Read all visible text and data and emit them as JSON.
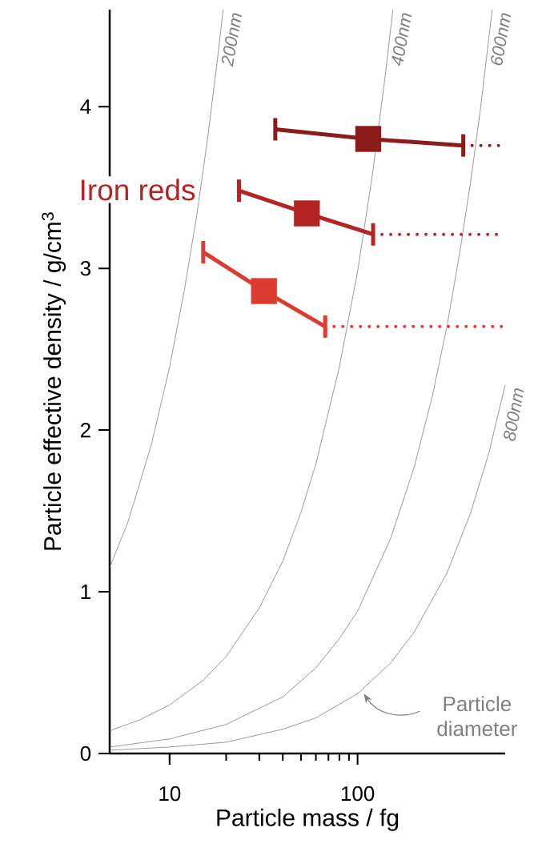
{
  "chart_data": {
    "type": "line",
    "xlabel": "Particle mass / fg",
    "ylabel": "Particle effective density / g/cm$^{3}$",
    "log": "x",
    "xlim": [
      4.8,
      610
    ],
    "xticks": [
      10,
      100
    ],
    "ylim": [
      0,
      4.6
    ],
    "yticks": [
      0,
      1,
      2,
      3,
      4
    ],
    "grid": false,
    "annotations": [
      "Iron reds",
      {
        "text": "Particle diameter",
        "x": 108,
        "y": 0.37
      }
    ],
    "series": [
      {
        "name": "200nm",
        "color": "#808080",
        "x": [
          4.8,
          6,
          8,
          10,
          12,
          14,
          16,
          18,
          19.27
        ],
        "values": [
          1.15,
          1.43,
          1.91,
          2.39,
          2.87,
          3.34,
          3.82,
          4.3,
          4.6
        ]
      },
      {
        "name": "400nm",
        "color": "#808080",
        "x": [
          4.8,
          7,
          10,
          15,
          20,
          30,
          40,
          50,
          60,
          80,
          100,
          120,
          140,
          154.1
        ],
        "values": [
          0.14,
          0.21,
          0.3,
          0.45,
          0.6,
          0.9,
          1.19,
          1.49,
          1.79,
          2.39,
          2.98,
          3.58,
          4.18,
          4.6
        ]
      },
      {
        "name": "600nm",
        "color": "#808080",
        "x": [
          4.8,
          10,
          20,
          40,
          60,
          80,
          100,
          150,
          200,
          250,
          300,
          350,
          400,
          450,
          520.3
        ],
        "values": [
          0.04,
          0.09,
          0.18,
          0.35,
          0.53,
          0.71,
          0.88,
          1.33,
          1.77,
          2.21,
          2.65,
          3.1,
          3.54,
          3.98,
          4.6
        ]
      },
      {
        "name": "800nm",
        "color": "#808080",
        "x": [
          4.8,
          10,
          20,
          40,
          60,
          100,
          150,
          200,
          300,
          400,
          500,
          610
        ],
        "values": [
          0.02,
          0.04,
          0.07,
          0.15,
          0.22,
          0.37,
          0.56,
          0.75,
          1.12,
          1.49,
          1.86,
          2.28
        ]
      },
      {
        "type": "line",
        "color": "#8b1c1a",
        "x": [
          36.5,
          114,
          365
        ],
        "values": [
          3.86,
          3.8,
          3.76
        ]
      },
      {
        "type": "scatter",
        "marker": "square",
        "color": "#8b1c1a",
        "x": [
          114
        ],
        "values": [
          3.8
        ]
      },
      {
        "line_style": "dotted",
        "color": "#8b1c1a",
        "x": [
          365,
          610
        ],
        "values": [
          3.76,
          3.76
        ]
      },
      {
        "type": "line",
        "color": "#b22523",
        "x": [
          23.4,
          53.7,
          121
        ],
        "values": [
          3.48,
          3.34,
          3.21
        ]
      },
      {
        "type": "scatter",
        "marker": "square",
        "color": "#b22523",
        "x": [
          53.7
        ],
        "values": [
          3.34
        ]
      },
      {
        "line_style": "dotted",
        "color": "#b22523",
        "x": [
          121,
          610
        ],
        "values": [
          3.21,
          3.21
        ]
      },
      {
        "type": "line",
        "color": "#dc3c30",
        "x": [
          15.1,
          31.8,
          67.3
        ],
        "values": [
          3.1,
          2.86,
          2.64
        ]
      },
      {
        "type": "scatter",
        "marker": "square",
        "color": "#dc3c30",
        "x": [
          31.8
        ],
        "values": [
          2.86
        ]
      },
      {
        "line_style": "dotted",
        "color": "#dc3c30",
        "x": [
          67.3,
          610
        ],
        "values": [
          2.64,
          2.64
        ]
      }
    ]
  }
}
